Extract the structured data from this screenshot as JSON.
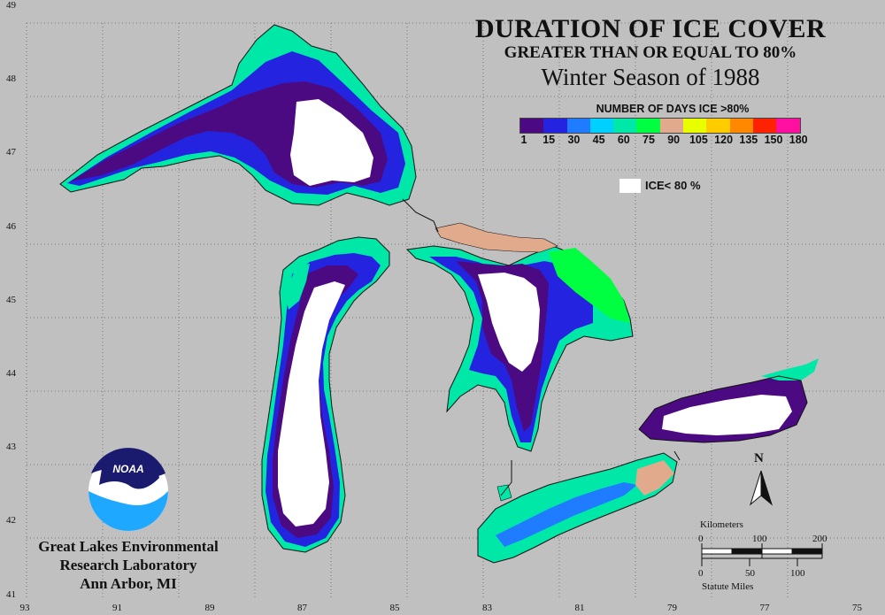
{
  "title": "DURATION OF ICE COVER",
  "subtitle": "GREATER THAN OR EQUAL TO 80%",
  "season": "Winter Season of 1988",
  "legend": {
    "title": "NUMBER OF DAYS ICE >80%",
    "bins": [
      {
        "color": "#4b0a82"
      },
      {
        "color": "#2424e0"
      },
      {
        "color": "#1f7bff"
      },
      {
        "color": "#00d0ff"
      },
      {
        "color": "#00e8a8"
      },
      {
        "color": "#00ff40"
      },
      {
        "color": "#e2aa8c"
      },
      {
        "color": "#e8ff00"
      },
      {
        "color": "#ffcc00"
      },
      {
        "color": "#ff8800"
      },
      {
        "color": "#ff2200"
      },
      {
        "color": "#ff10a0"
      }
    ],
    "labels": [
      "1",
      "15",
      "30",
      "45",
      "60",
      "75",
      "90",
      "105",
      "120",
      "135",
      "150",
      "180"
    ],
    "ice_label": "ICE< 80 %"
  },
  "axes": {
    "lat_labels": [
      "49",
      "48",
      "47",
      "46",
      "45",
      "44",
      "43",
      "42",
      "41"
    ],
    "lon_labels": [
      "93",
      "91",
      "89",
      "87",
      "85",
      "83",
      "81",
      "79",
      "77",
      "75"
    ]
  },
  "organization": {
    "logo_text": "NOAA",
    "line1": "Great Lakes Environmental",
    "line2": "Research Laboratory",
    "line3": "Ann Arbor, MI"
  },
  "scale": {
    "km_label": "Kilometers",
    "km_ticks": [
      "0",
      "100",
      "200"
    ],
    "mi_ticks": [
      "0",
      "50",
      "100"
    ],
    "mi_label": "Statute Miles"
  },
  "north_label": "N",
  "colors": {
    "background": "#c0c0c0",
    "land_border": "#111111",
    "white_ice": "#ffffff"
  }
}
